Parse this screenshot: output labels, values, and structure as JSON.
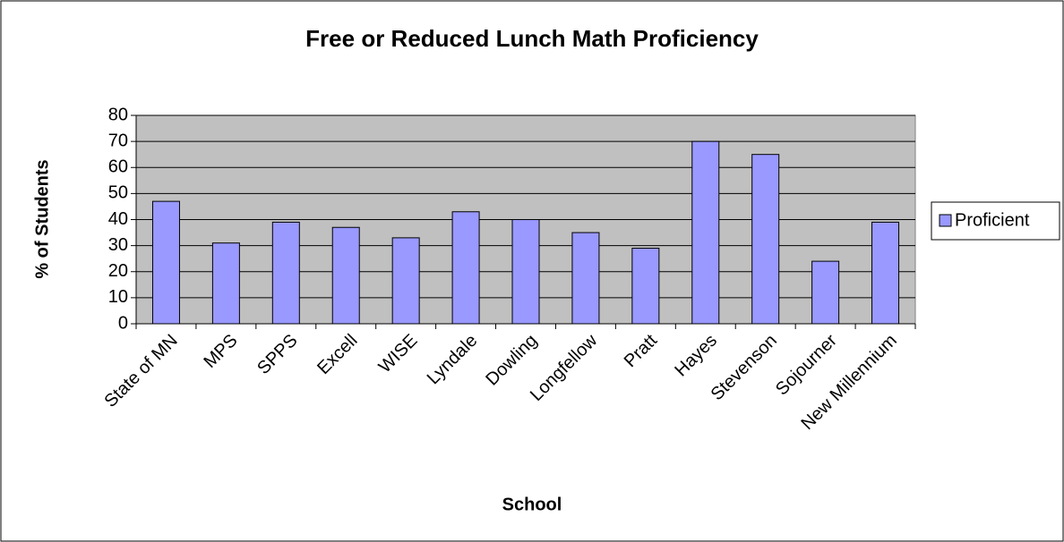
{
  "chart_data": {
    "type": "bar",
    "title": "Free or Reduced Lunch Math Proficiency",
    "x_label": "School",
    "y_label": "% of Students",
    "categories": [
      "State of MN",
      "MPS",
      "SPPS",
      "Excell",
      "WISE",
      "Lyndale",
      "Dowling",
      "Longfellow",
      "Pratt",
      "Hayes",
      "Stevenson",
      "Sojourner",
      "New Millennium"
    ],
    "series": [
      {
        "name": "Proficient",
        "color": "#9999ff",
        "values": [
          47,
          31,
          39,
          37,
          33,
          43,
          40,
          35,
          29,
          70,
          65,
          24,
          39
        ]
      }
    ],
    "ylim": [
      0,
      80
    ],
    "yticks": [
      0,
      10,
      20,
      30,
      40,
      50,
      60,
      70,
      80
    ],
    "grid": true,
    "legend": "right"
  }
}
